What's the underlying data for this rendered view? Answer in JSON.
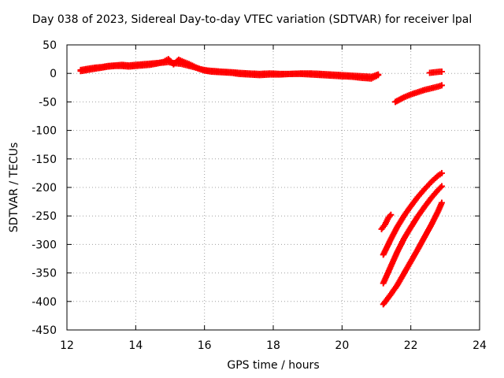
{
  "chart_data": {
    "type": "scatter",
    "title": "Day 038 of 2023, Sidereal Day-to-day VTEC variation (SDTVAR) for receiver lpal",
    "xlabel": "GPS time / hours",
    "ylabel": "SDTVAR / TECUs",
    "xlim": [
      12,
      24
    ],
    "ylim": [
      -450,
      50
    ],
    "xticks": [
      12,
      14,
      16,
      18,
      20,
      22,
      24
    ],
    "yticks": [
      50,
      0,
      -50,
      -100,
      -150,
      -200,
      -250,
      -300,
      -350,
      -400,
      -450
    ],
    "grid": true,
    "marker": "plus",
    "color": "#ff0000",
    "series": [
      {
        "x": [
          12.4,
          12.6,
          12.8,
          13.0,
          13.2,
          13.4,
          13.6,
          13.8,
          14.0,
          14.2,
          14.4,
          14.6,
          14.8,
          14.95,
          15.1,
          15.3,
          15.5,
          15.7,
          15.9,
          16.1,
          16.3,
          16.5,
          16.8,
          17.0,
          17.3,
          17.6,
          17.9,
          18.2,
          18.5,
          18.8,
          19.1,
          19.4,
          19.7,
          20.0,
          20.3,
          20.6,
          20.85,
          21.05
        ],
        "y": [
          6,
          8,
          10,
          11,
          13,
          14,
          15,
          14,
          15,
          16,
          17,
          18,
          19,
          20,
          18,
          17,
          14,
          11,
          7,
          5,
          4,
          3,
          2,
          1,
          0,
          -1,
          0,
          -1,
          -1,
          0,
          0,
          -1,
          -2,
          -3,
          -4,
          -5,
          -6,
          -2
        ]
      },
      {
        "x": [
          12.4,
          12.6,
          12.8,
          13.0,
          13.2,
          13.4,
          13.6,
          13.8,
          14.0,
          14.2,
          14.4,
          14.6,
          14.8,
          14.95,
          15.1,
          15.25,
          15.4,
          15.6,
          15.8,
          16.0,
          16.2,
          16.5,
          16.8,
          17.0,
          17.3,
          17.6,
          17.9,
          18.2,
          18.5,
          18.8,
          19.1,
          19.4,
          19.7,
          20.0,
          20.3,
          20.6,
          20.85,
          21.05
        ],
        "y": [
          4,
          6,
          8,
          10,
          12,
          13,
          13,
          12,
          13,
          14,
          15,
          17,
          20,
          25,
          16,
          24,
          20,
          15,
          9,
          5,
          3,
          2,
          1,
          -1,
          -2,
          -3,
          -2,
          -2,
          -1,
          -1,
          -2,
          -3,
          -4,
          -5,
          -6,
          -8,
          -9,
          -3
        ]
      },
      {
        "x": [
          21.55,
          21.8,
          22.0,
          22.2,
          22.4,
          22.6,
          22.8,
          22.9
        ],
        "y": [
          -50,
          -42,
          -37,
          -33,
          -29,
          -26,
          -23,
          -21
        ]
      },
      {
        "x": [
          22.55,
          22.7,
          22.85,
          22.9
        ],
        "y": [
          1,
          2,
          3,
          3
        ]
      },
      {
        "x": [
          21.15,
          21.25,
          21.35,
          21.42
        ],
        "y": [
          -273,
          -265,
          -253,
          -248
        ]
      },
      {
        "x": [
          21.2,
          21.4,
          21.6,
          21.8,
          22.0,
          22.2,
          22.4,
          22.6,
          22.8,
          22.9
        ],
        "y": [
          -318,
          -293,
          -270,
          -250,
          -233,
          -217,
          -203,
          -190,
          -179,
          -175
        ]
      },
      {
        "x": [
          21.2,
          21.4,
          21.6,
          21.8,
          22.0,
          22.2,
          22.4,
          22.6,
          22.8,
          22.9
        ],
        "y": [
          -368,
          -341,
          -314,
          -290,
          -270,
          -251,
          -234,
          -218,
          -204,
          -198
        ]
      },
      {
        "x": [
          21.2,
          21.4,
          21.6,
          21.8,
          22.0,
          22.2,
          22.4,
          22.6,
          22.8,
          22.9
        ],
        "y": [
          -405,
          -389,
          -372,
          -351,
          -330,
          -309,
          -287,
          -265,
          -241,
          -227
        ]
      }
    ]
  }
}
